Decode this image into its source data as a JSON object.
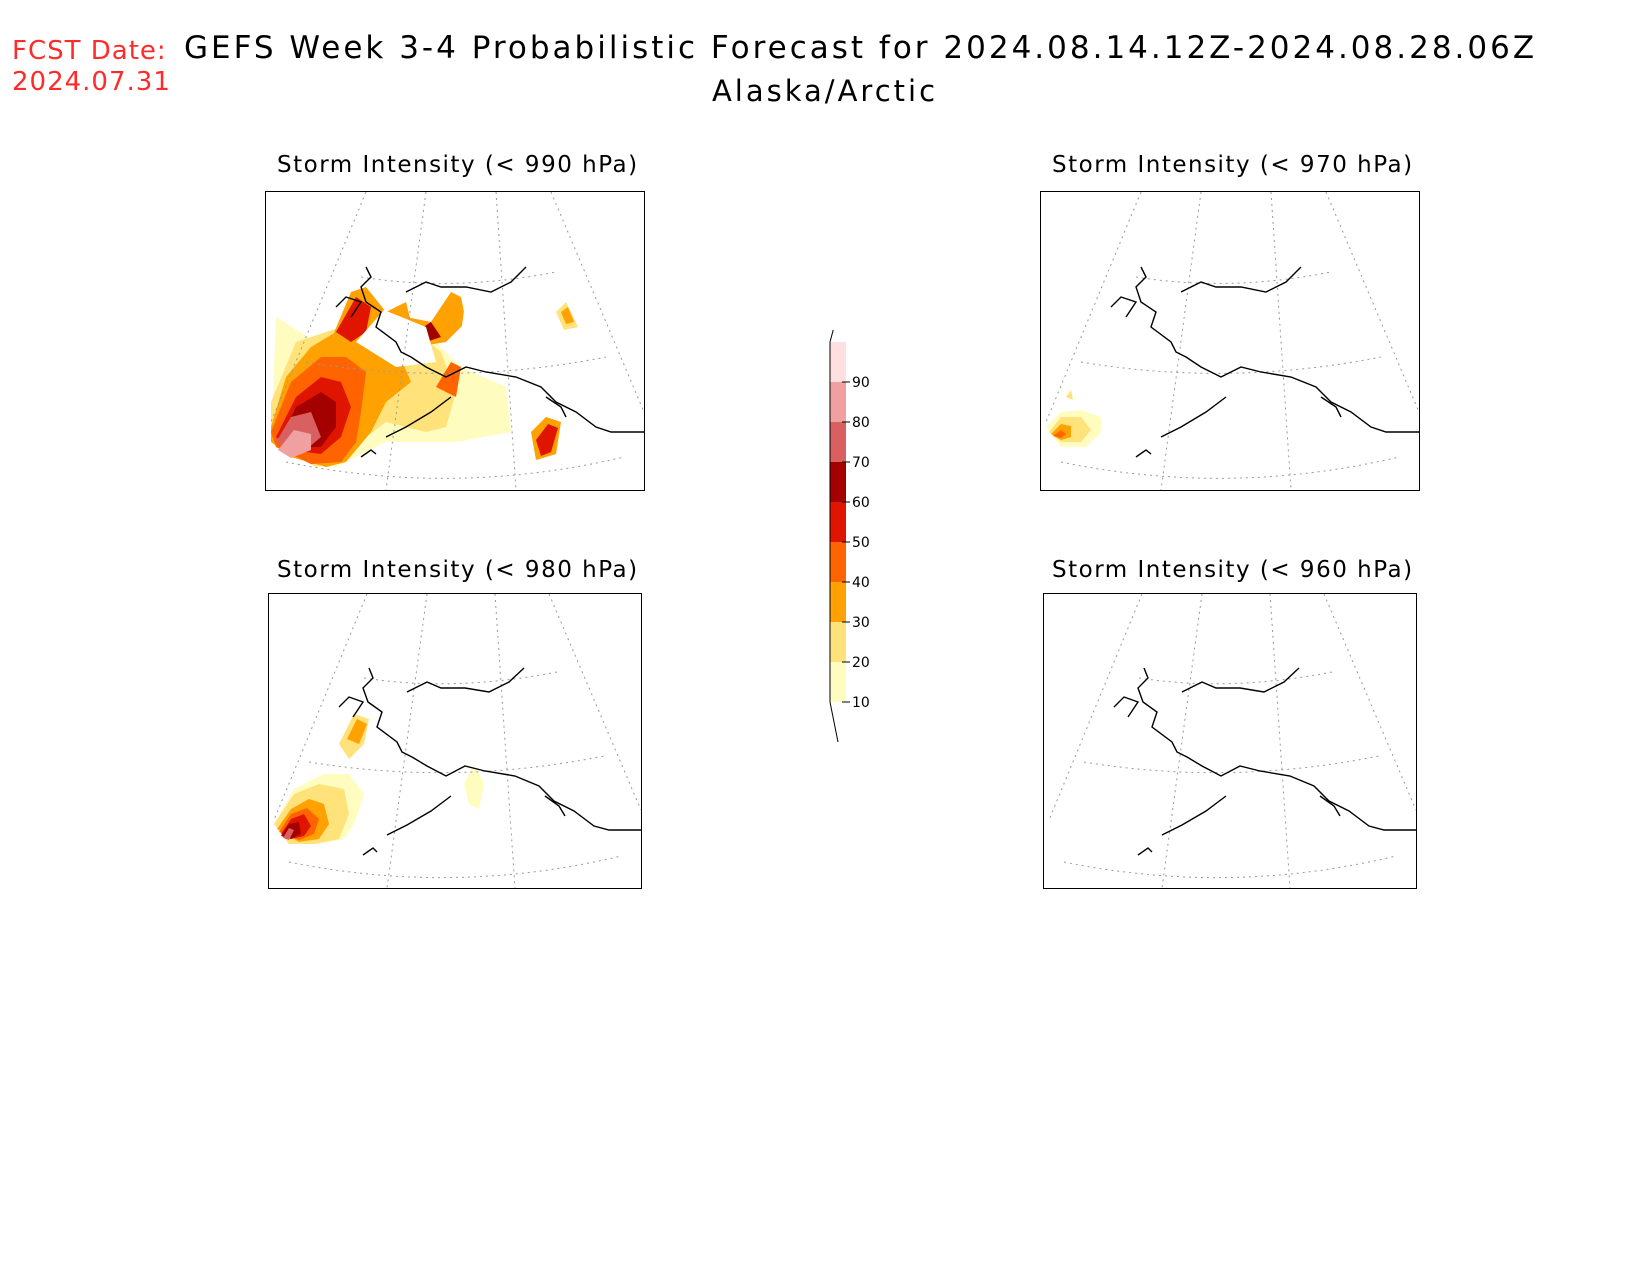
{
  "header": {
    "fcst_label": "FCST Date:",
    "fcst_date": "2024.07.31",
    "title": "GEFS Week 3-4 Probabilistic Forecast for 2024.08.14.12Z-2024.08.28.06Z",
    "region": "Alaska/Arctic"
  },
  "panels": [
    {
      "title": "Storm Intensity (< 990 hPa)",
      "level": "990"
    },
    {
      "title": "Storm Intensity (< 970 hPa)",
      "level": "970"
    },
    {
      "title": "Storm Intensity (< 980 hPa)",
      "level": "980"
    },
    {
      "title": "Storm Intensity (< 960 hPa)",
      "level": "960"
    }
  ],
  "colorbar": {
    "levels": [
      "10",
      "20",
      "30",
      "40",
      "50",
      "60",
      "70",
      "80",
      "90"
    ],
    "colors": [
      "#fffcc0",
      "#ffe27a",
      "#ffa100",
      "#ff6400",
      "#e01500",
      "#a50000",
      "#d96060",
      "#f0a0a0",
      "#ffe0e0"
    ]
  }
}
